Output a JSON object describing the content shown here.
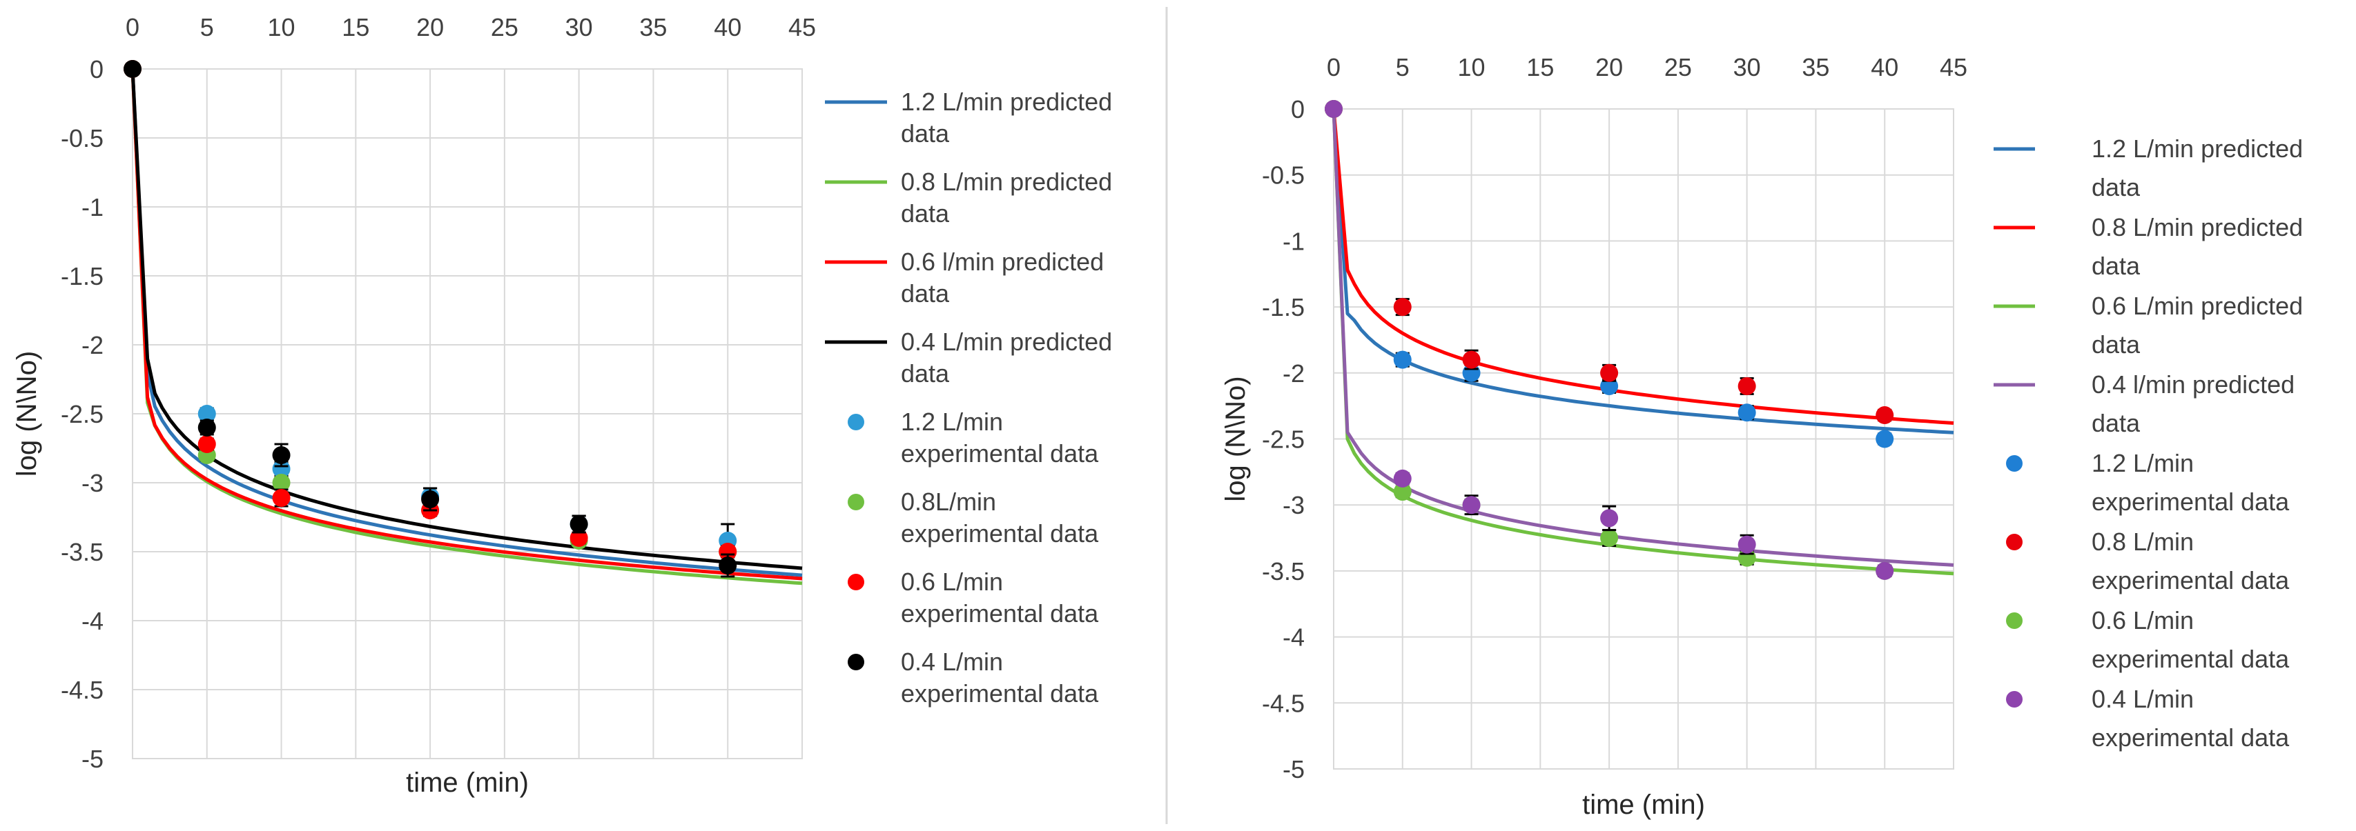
{
  "chart_data": [
    {
      "type": "line",
      "xlabel": "time (min)",
      "ylabel": "log (N\\No)",
      "xlim": [
        0,
        45
      ],
      "ylim": [
        -5,
        0
      ],
      "x_ticks": [
        "0",
        "5",
        "10",
        "15",
        "20",
        "25",
        "30",
        "35",
        "40",
        "45"
      ],
      "y_ticks": [
        "0",
        "-0.5",
        "-1",
        "-1.5",
        "-2",
        "-2.5",
        "-3",
        "-3.5",
        "-4",
        "-4.5",
        "-5"
      ],
      "grid": true,
      "legend_position": "right",
      "predicted_series": [
        {
          "name_lines": [
            "1.2 L/min predicted",
            "data"
          ],
          "color": "#2e75b6",
          "a": 2.3,
          "b": 0.36,
          "start": -2.2
        },
        {
          "name_lines": [
            "0.8 L/min predicted",
            "data"
          ],
          "color": "#70c040",
          "a": 2.45,
          "b": 0.336,
          "start": -2.42
        },
        {
          "name_lines": [
            "0.6 l/min predicted",
            "data"
          ],
          "color": "#ff0000",
          "a": 2.45,
          "b": 0.327,
          "start": -2.38
        },
        {
          "name_lines": [
            "0.4 L/min predicted",
            "data"
          ],
          "color": "#000000",
          "a": 2.2,
          "b": 0.373,
          "start": -2.1
        }
      ],
      "experimental_series": [
        {
          "name_lines": [
            "1.2 L/min",
            "experimental data"
          ],
          "color": "#2e9bd6",
          "x": [
            0,
            5,
            10,
            20,
            30,
            40
          ],
          "y": [
            0,
            -2.5,
            -2.9,
            -3.1,
            -3.3,
            -3.42
          ],
          "err": [
            0,
            0.04,
            0.05,
            0.06,
            0.06,
            0.12
          ]
        },
        {
          "name_lines": [
            "0.8L/min",
            "experimental data"
          ],
          "color": "#70c040",
          "x": [
            0,
            5,
            10,
            20,
            30,
            40
          ],
          "y": [
            0,
            -2.8,
            -3.0,
            -3.2,
            -3.42,
            -3.5
          ],
          "err": [
            0,
            0.04,
            0.04,
            0.04,
            0.04,
            0.04
          ]
        },
        {
          "name_lines": [
            "0.6 L/min",
            "experimental data"
          ],
          "color": "#ff0000",
          "x": [
            0,
            5,
            10,
            20,
            30,
            40
          ],
          "y": [
            0,
            -2.72,
            -3.11,
            -3.2,
            -3.4,
            -3.5
          ],
          "err": [
            0,
            0.04,
            0.06,
            0.04,
            0.04,
            0.04
          ]
        },
        {
          "name_lines": [
            "0.4 L/min",
            "experimental data"
          ],
          "color": "#000000",
          "x": [
            0,
            5,
            10,
            20,
            30,
            40
          ],
          "y": [
            0,
            -2.6,
            -2.8,
            -3.12,
            -3.3,
            -3.6
          ],
          "err": [
            0,
            0.05,
            0.08,
            0.08,
            0.06,
            0.08
          ]
        }
      ]
    },
    {
      "type": "line",
      "xlabel": "time (min)",
      "ylabel": "log (N\\No)",
      "xlim": [
        0,
        45
      ],
      "ylim": [
        -5,
        0
      ],
      "x_ticks": [
        "0",
        "5",
        "10",
        "15",
        "20",
        "25",
        "30",
        "35",
        "40",
        "45"
      ],
      "y_ticks": [
        "0",
        "-0.5",
        "-1",
        "-1.5",
        "-2",
        "-2.5",
        "-3",
        "-3.5",
        "-4",
        "-4.5",
        "-5"
      ],
      "grid": true,
      "legend_position": "right",
      "predicted_series": [
        {
          "name_lines": [
            "1.2 L/min predicted",
            "data"
          ],
          "color": "#2e75b6",
          "a": 1.5,
          "b": 0.25,
          "start": -1.55
        },
        {
          "name_lines": [
            "0.8 L/min predicted",
            "data"
          ],
          "color": "#ff0000",
          "a": 1.2,
          "b": 0.31,
          "start": -1.22
        },
        {
          "name_lines": [
            "0.6 L/min predicted",
            "data"
          ],
          "color": "#70c040",
          "a": 2.5,
          "b": 0.268,
          "start": -2.5
        },
        {
          "name_lines": [
            "0.4 l/min predicted",
            "data"
          ],
          "color": "#8e5ea8",
          "a": 2.42,
          "b": 0.272,
          "start": -2.45
        }
      ],
      "experimental_series": [
        {
          "name_lines": [
            "1.2 L/min",
            "experimental data"
          ],
          "color": "#1f7fd4",
          "x": [
            0,
            5,
            10,
            20,
            30,
            40
          ],
          "y": [
            0,
            -1.9,
            -2.0,
            -2.1,
            -2.3,
            -2.5
          ],
          "err": [
            0,
            0.05,
            0.06,
            0.05,
            0.05,
            0.04
          ]
        },
        {
          "name_lines": [
            "0.8 L/min",
            "experimental data"
          ],
          "color": "#e8000b",
          "x": [
            0,
            5,
            10,
            20,
            30,
            40
          ],
          "y": [
            0,
            -1.5,
            -1.9,
            -2.0,
            -2.1,
            -2.32
          ],
          "err": [
            0,
            0.06,
            0.07,
            0.06,
            0.06,
            0.04
          ]
        },
        {
          "name_lines": [
            "0.6 L/min",
            "experimental data"
          ],
          "color": "#70c040",
          "x": [
            0,
            5,
            10,
            20,
            30,
            40
          ],
          "y": [
            0,
            -2.9,
            -3.0,
            -3.25,
            -3.4,
            -3.5
          ],
          "err": [
            0,
            0.04,
            0.04,
            0.06,
            0.05,
            0.04
          ]
        },
        {
          "name_lines": [
            "0.4 L/min",
            "experimental data"
          ],
          "color": "#8e44ad",
          "x": [
            0,
            5,
            10,
            20,
            30,
            40
          ],
          "y": [
            0,
            -2.8,
            -3.0,
            -3.1,
            -3.3,
            -3.5
          ],
          "err": [
            0,
            0.04,
            0.07,
            0.09,
            0.07,
            0.04
          ]
        }
      ]
    }
  ]
}
